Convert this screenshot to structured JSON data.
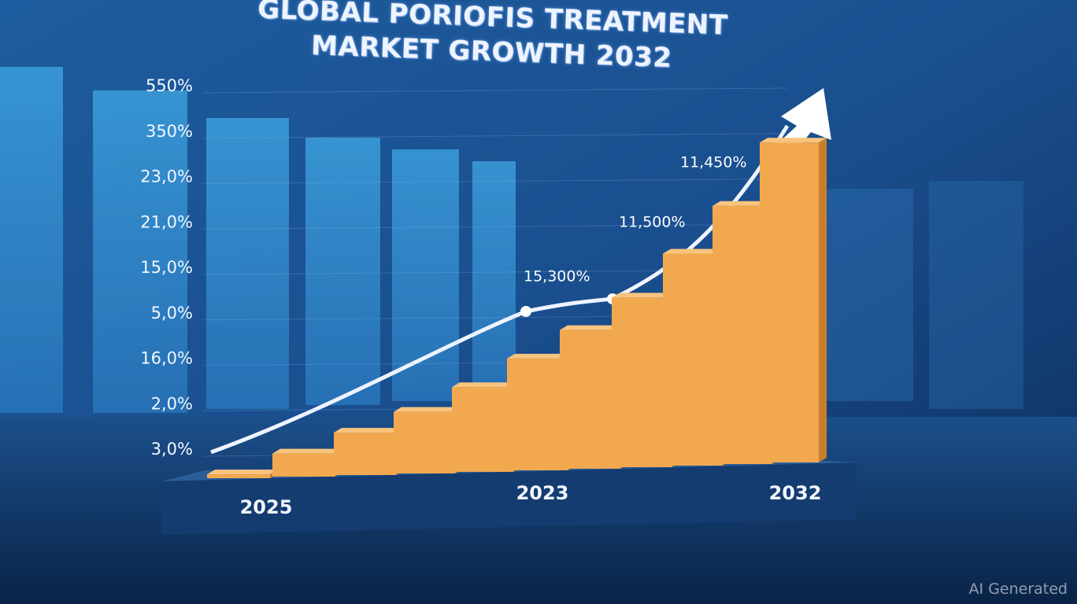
{
  "chart_data": {
    "type": "bar",
    "title": "GLOBAL PORIOFIS TREATMENT MARKET GROWTH 2032",
    "y_labels": [
      "3,0%",
      "2,0%",
      "16,0%",
      "5,0%",
      "15,0%",
      "21,0%",
      "23,0%",
      "350%",
      "550%"
    ],
    "categories": [
      "2025",
      null,
      null,
      null,
      null,
      "2023",
      null,
      null,
      null,
      null,
      "2032"
    ],
    "values": [
      1,
      6,
      11,
      16,
      22,
      29,
      36,
      44,
      55,
      67,
      83
    ],
    "ylim": [
      0,
      100
    ],
    "color": "#f2a84f",
    "annotations": [
      "15,300%",
      "11,500%",
      "11,450%"
    ],
    "watermark": "AI Generated"
  }
}
